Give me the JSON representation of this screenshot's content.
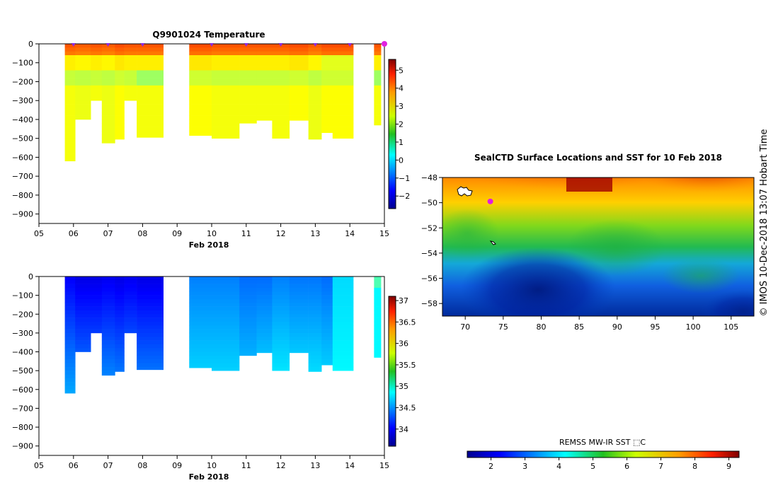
{
  "side_label": "© IMOS 10-Dec-2018 13:07 Hobart Time",
  "chart_data": [
    {
      "type": "heatmap",
      "title": "Q9901024  Temperature",
      "xlabel": "Feb 2018",
      "ylabel": "",
      "xlim": [
        5,
        15
      ],
      "ylim": [
        -950,
        0
      ],
      "xticks": [
        "05",
        "06",
        "07",
        "08",
        "09",
        "10",
        "11",
        "12",
        "13",
        "14",
        "15"
      ],
      "yticks": [
        "0",
        "−100",
        "−200",
        "−300",
        "−400",
        "−500",
        "−600",
        "−700",
        "−800",
        "−900"
      ],
      "colorbar": {
        "min": -2.7,
        "max": 5.6,
        "ticks": [
          "5",
          "4",
          "3",
          "2",
          "1",
          "0",
          "−1",
          "−2"
        ]
      },
      "surface_markers_x": [
        6.0,
        7.0,
        8.0,
        10.0,
        11.0,
        12.0,
        13.0,
        14.0
      ],
      "highlight_marker_x": 15.0,
      "profiles": [
        {
          "x0": 5.75,
          "x1": 6.05,
          "depth": 620
        },
        {
          "x0": 6.05,
          "x1": 6.5,
          "depth": 400
        },
        {
          "x0": 6.5,
          "x1": 6.82,
          "depth": 300
        },
        {
          "x0": 6.82,
          "x1": 7.2,
          "depth": 525
        },
        {
          "x0": 7.2,
          "x1": 7.47,
          "depth": 505
        },
        {
          "x0": 7.47,
          "x1": 7.83,
          "depth": 300
        },
        {
          "x0": 7.83,
          "x1": 8.6,
          "depth": 495
        },
        {
          "x0": 9.35,
          "x1": 10.0,
          "depth": 485
        },
        {
          "x0": 10.0,
          "x1": 10.8,
          "depth": 500
        },
        {
          "x0": 10.8,
          "x1": 11.3,
          "depth": 420
        },
        {
          "x0": 11.3,
          "x1": 11.75,
          "depth": 405
        },
        {
          "x0": 11.75,
          "x1": 12.25,
          "depth": 500
        },
        {
          "x0": 12.25,
          "x1": 12.8,
          "depth": 405
        },
        {
          "x0": 12.8,
          "x1": 13.18,
          "depth": 505
        },
        {
          "x0": 13.18,
          "x1": 13.5,
          "depth": 470
        },
        {
          "x0": 13.5,
          "x1": 14.1,
          "depth": 500
        },
        {
          "x0": 14.7,
          "x1": 14.9,
          "depth": 430
        }
      ]
    },
    {
      "type": "heatmap",
      "title": "",
      "xlabel": "Feb 2018",
      "ylabel": "",
      "xlim": [
        5,
        15
      ],
      "ylim": [
        -950,
        0
      ],
      "xticks": [
        "05",
        "06",
        "07",
        "08",
        "09",
        "10",
        "11",
        "12",
        "13",
        "14",
        "15"
      ],
      "yticks": [
        "0",
        "−100",
        "−200",
        "−300",
        "−400",
        "−500",
        "−600",
        "−700",
        "−800",
        "−900"
      ],
      "colorbar": {
        "min": 33.6,
        "max": 37.1,
        "ticks": [
          "37",
          "36.5",
          "36",
          "35.5",
          "35",
          "34.5",
          "34"
        ]
      },
      "profiles_same_as_first_chart": true
    },
    {
      "type": "heatmap",
      "title": "SealCTD Surface Locations and SST for 10 Feb 2018",
      "xlabel": "",
      "ylabel": "",
      "xlim": [
        67,
        108
      ],
      "ylim": [
        -59,
        -48
      ],
      "xticks": [
        "70",
        "75",
        "80",
        "85",
        "90",
        "95",
        "100",
        "105"
      ],
      "yticks": [
        "−48",
        "−50",
        "−52",
        "−54",
        "−56",
        "−58"
      ],
      "colorbar": {
        "label": "REMSS MW-IR SST ⬚C",
        "min": 1.3,
        "max": 9.3,
        "ticks": [
          "2",
          "3",
          "4",
          "5",
          "6",
          "7",
          "8",
          "9"
        ]
      },
      "seal_location": {
        "lon": 73.3,
        "lat": -49.9
      }
    }
  ]
}
